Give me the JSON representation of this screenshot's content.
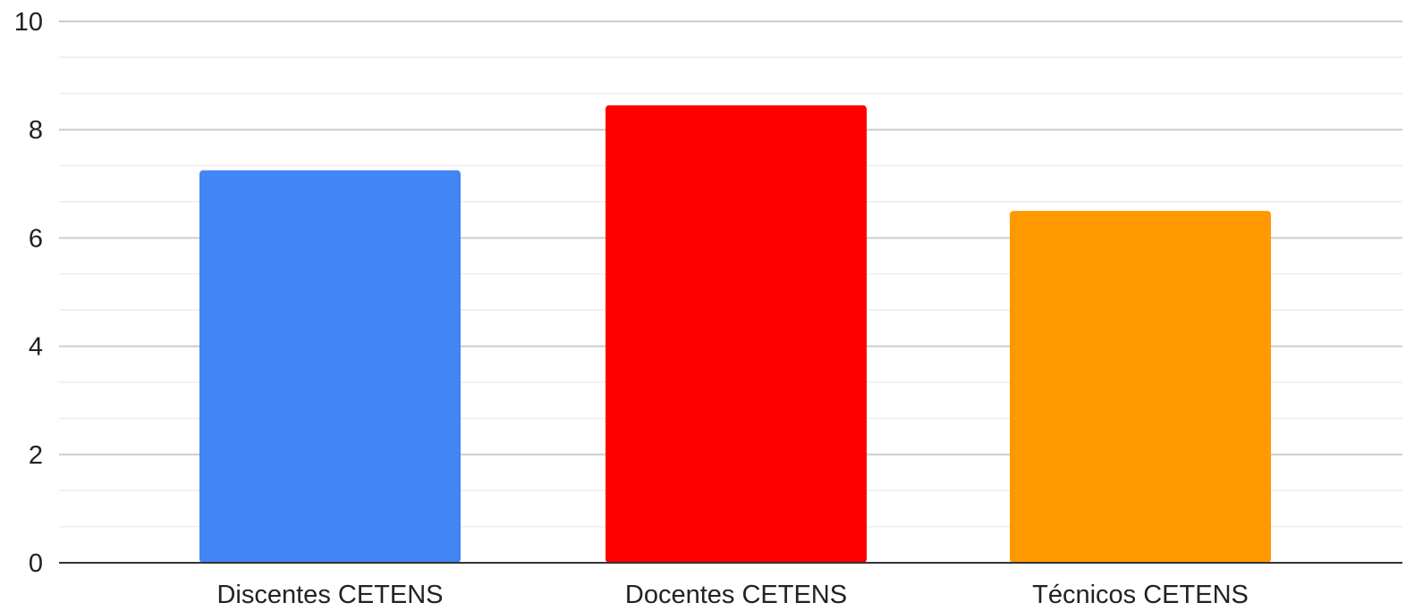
{
  "chart_data": {
    "type": "bar",
    "categories": [
      "Discentes CETENS",
      "Docentes CETENS",
      "Técnicos CETENS"
    ],
    "values": [
      7.25,
      8.45,
      6.5
    ],
    "colors": [
      "#4285f4",
      "#ff0000",
      "#ff9900"
    ],
    "title": "",
    "xlabel": "",
    "ylabel": "",
    "ylim": [
      0,
      10
    ],
    "yticks": [
      "0",
      "2",
      "4",
      "6",
      "8",
      "10"
    ],
    "ytick_values": [
      0,
      2,
      4,
      6,
      8,
      10
    ],
    "minor_step": 0.667,
    "grid": true,
    "legend": "none"
  }
}
